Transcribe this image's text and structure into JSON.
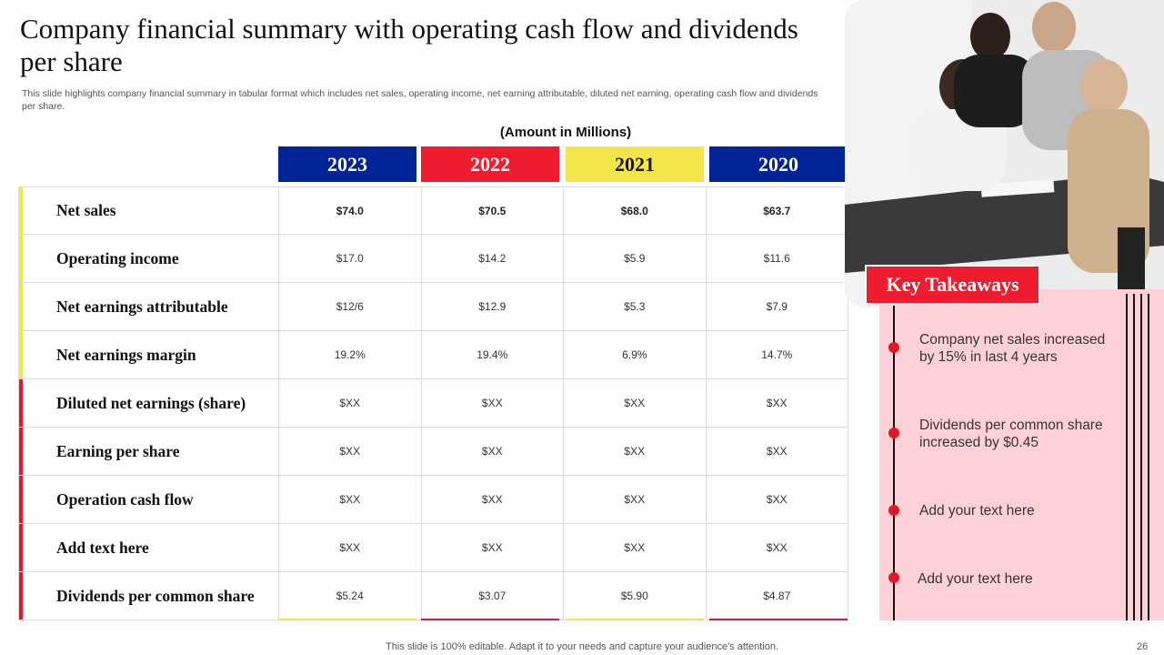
{
  "title": "Company financial summary with operating cash flow and dividends per share",
  "subtitle": "This slide highlights company financial summary in tabular format which includes net sales, operating income, net earning attributable, diluted net earning, operating cash flow and dividends per share.",
  "amount_note": "(Amount in Millions)",
  "colors": {
    "blue": "#002395",
    "red": "#ee1c2e",
    "yellow": "#f3e54b",
    "pink": "#ffd1d7"
  },
  "years": [
    "2023",
    "2022",
    "2021",
    "2020"
  ],
  "rows": [
    {
      "label": "Net sales",
      "values": [
        "$74.0",
        "$70.5",
        "$68.0",
        "$63.7"
      ]
    },
    {
      "label": "Operating income",
      "values": [
        "$17.0",
        "$14.2",
        "$5.9",
        "$11.6"
      ]
    },
    {
      "label": "Net earnings attributable",
      "values": [
        "$12/6",
        "$12.9",
        "$5.3",
        "$7.9"
      ]
    },
    {
      "label": "Net earnings margin",
      "values": [
        "19.2%",
        "19.4%",
        "6.9%",
        "14.7%"
      ]
    },
    {
      "label": "Diluted net earnings (share)",
      "values": [
        "$XX",
        "$XX",
        "$XX",
        "$XX"
      ]
    },
    {
      "label": "Earning per share",
      "values": [
        "$XX",
        "$XX",
        "$XX",
        "$XX"
      ]
    },
    {
      "label": "Operation cash flow",
      "values": [
        "$XX",
        "$XX",
        "$XX",
        "$XX"
      ]
    },
    {
      "label": "Add text here",
      "values": [
        "$XX",
        "$XX",
        "$XX",
        "$XX"
      ]
    },
    {
      "label": "Dividends per common share",
      "values": [
        "$5.24",
        "$3.07",
        "$5.90",
        "$4.87"
      ]
    }
  ],
  "key_takeaways": {
    "heading": "Key Takeaways",
    "items": [
      "Company net sales increased by 15% in last 4 years",
      "Dividends per common share increased by $0.45",
      "Add your text here",
      "Add your text here"
    ]
  },
  "footer": "This slide is 100% editable. Adapt it to your needs and capture your audience's attention.",
  "page_number": "26"
}
